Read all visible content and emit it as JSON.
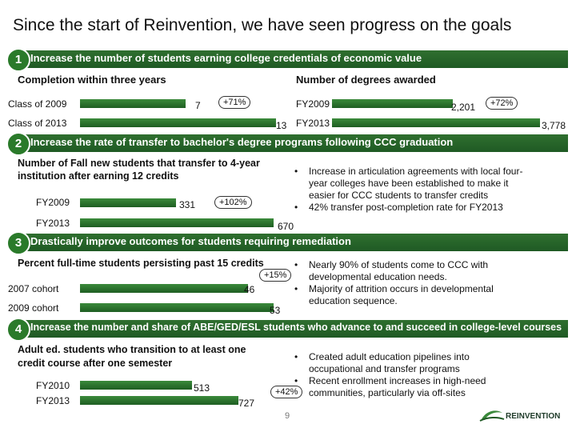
{
  "title": "Since the start of Reinvention, we have seen progress  on the goals",
  "goal1": {
    "number": "1",
    "header": "Increase the number of students earning college credentials of economic value",
    "left": {
      "subtitle": "Completion within three years",
      "rows": [
        {
          "label": "Class of 2009",
          "value": "7"
        },
        {
          "label": "Class of 2013",
          "value": "13"
        }
      ],
      "change": "+71%"
    },
    "right": {
      "subtitle": "Number of degrees awarded",
      "rows": [
        {
          "label": "FY2009",
          "value": "2,201"
        },
        {
          "label": "FY2013",
          "value": "3,778"
        }
      ],
      "change": "+72%"
    }
  },
  "goal2": {
    "number": "2",
    "header": "Increase the rate of transfer to bachelor's degree programs following CCC graduation",
    "subtitle_line1": "Number of Fall new students that transfer to 4-year",
    "subtitle_line2": "institution after earning 12 credits",
    "rows": [
      {
        "label": "FY2009",
        "value": "331"
      },
      {
        "label": "FY2013",
        "value": "670"
      }
    ],
    "change": "+102%",
    "bullets": [
      {
        "l1": "Increase in articulation agreements with local four-",
        "l2": "year colleges have been established to make it",
        "l3": "easier for CCC students to transfer credits"
      },
      {
        "l1": "42% transfer post-completion rate for FY2013",
        "l2": "",
        "l3": ""
      }
    ]
  },
  "goal3": {
    "number": "3",
    "header": "Drastically improve outcomes for students requiring remediation",
    "subtitle": "Percent  full-time students persisting past 15 credits",
    "rows": [
      {
        "label": "2007 cohort",
        "value": "46"
      },
      {
        "label": "2009 cohort",
        "value": "53"
      }
    ],
    "change": "+15%",
    "bullets": [
      {
        "l1": "Nearly 90% of students come to CCC with",
        "l2": "developmental education needs."
      },
      {
        "l1": "Majority of attrition occurs in developmental",
        "l2": "education sequence."
      }
    ]
  },
  "goal4": {
    "number": "4",
    "header": "Increase the number and share of ABE/GED/ESL students who advance to and succeed in college-level courses",
    "subtitle_line1": "Adult ed. students who transition to at least one",
    "subtitle_line2": "credit course  after one semester",
    "rows": [
      {
        "label": "FY2010",
        "value": "513"
      },
      {
        "label": "FY2013",
        "value": "727"
      }
    ],
    "change": "+42%",
    "bullets": [
      {
        "l1": "Created  adult education pipelines into",
        "l2": "occupational and transfer programs"
      },
      {
        "l1": "Recent enrollment increases in high-need",
        "l2": "communities, particularly via off-sites"
      }
    ]
  },
  "page_number": "9",
  "logo_text": "REINVENTION",
  "colors": {
    "band": "#1f5a24",
    "bar": "#2f7a2f",
    "accent": "#2a7a2a"
  },
  "chart_data": [
    {
      "type": "bar",
      "title": "Completion within three years",
      "categories": [
        "Class of 2009",
        "Class of 2013"
      ],
      "values": [
        7,
        13
      ]
    },
    {
      "type": "bar",
      "title": "Number of degrees awarded",
      "categories": [
        "FY2009",
        "FY2013"
      ],
      "values": [
        2201,
        3778
      ]
    },
    {
      "type": "bar",
      "title": "Number of Fall new students that transfer to 4-year institution after earning 12 credits",
      "categories": [
        "FY2009",
        "FY2013"
      ],
      "values": [
        331,
        670
      ]
    },
    {
      "type": "bar",
      "title": "Percent  full-time students persisting past 15 credits",
      "categories": [
        "2007 cohort",
        "2009 cohort"
      ],
      "values": [
        46,
        53
      ]
    },
    {
      "type": "bar",
      "title": "Adult ed. students who transition to at least one credit course  after one semester",
      "categories": [
        "FY2010",
        "FY2013"
      ],
      "values": [
        513,
        727
      ]
    }
  ]
}
